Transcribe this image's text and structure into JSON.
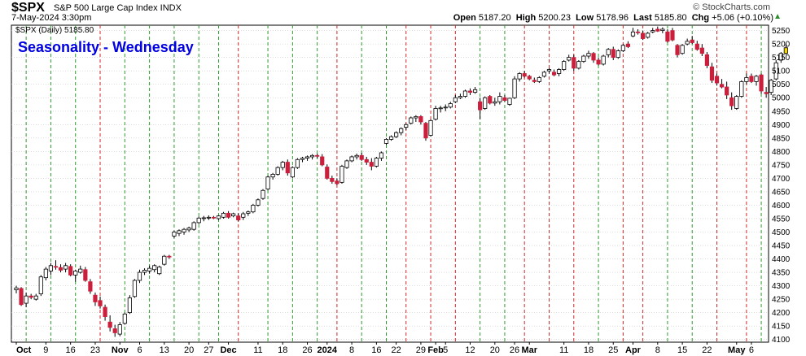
{
  "header": {
    "symbol": "$SPX",
    "description": "S&P 500 Large Cap Index INDX",
    "date": "7-May-2024 3:30pm",
    "copyright": "© StockCharts.com",
    "open_label": "Open",
    "open": "5187.20",
    "high_label": "High",
    "high": "5200.23",
    "low_label": "Low",
    "low": "5178.96",
    "last_label": "Last",
    "last": "5185.80",
    "chg_label": "Chg",
    "chg": "+5.06 (+0.10%)"
  },
  "legend_label": "$SPX (Daily) 5185.80",
  "overlay_title": "Seasonality - Wednesday",
  "colors": {
    "up": "#ffffff",
    "down": "#cc1f3c",
    "vline_green": "#2e9a2e",
    "vline_red": "#d22a2a",
    "grid": "#c8c8c8",
    "title": "#0000e0",
    "last_marker": "#f2d500"
  },
  "chart_data": {
    "type": "candlestick",
    "title": "Seasonality - Wednesday",
    "ylim": [
      4090,
      5270
    ],
    "yticks": [
      4100,
      4150,
      4200,
      4250,
      4300,
      4350,
      4400,
      4450,
      4500,
      4550,
      4600,
      4650,
      4700,
      4750,
      4800,
      4850,
      4900,
      4950,
      5000,
      5050,
      5100,
      5150,
      5200,
      5250
    ],
    "xlabels": [
      {
        "i": 0,
        "label": "Oct",
        "bold": true
      },
      {
        "i": 6,
        "label": "9"
      },
      {
        "i": 11,
        "label": "16"
      },
      {
        "i": 16,
        "label": "23"
      },
      {
        "i": 21,
        "label": "Nov",
        "bold": true
      },
      {
        "i": 25,
        "label": "6"
      },
      {
        "i": 30,
        "label": "13"
      },
      {
        "i": 35,
        "label": "20"
      },
      {
        "i": 39,
        "label": "27"
      },
      {
        "i": 43,
        "label": "Dec",
        "bold": true
      },
      {
        "i": 49,
        "label": "11"
      },
      {
        "i": 54,
        "label": "18"
      },
      {
        "i": 59,
        "label": "26"
      },
      {
        "i": 63,
        "label": "2024",
        "bold": true
      },
      {
        "i": 68,
        "label": "8"
      },
      {
        "i": 73,
        "label": "16"
      },
      {
        "i": 77,
        "label": "22"
      },
      {
        "i": 82,
        "label": "29"
      },
      {
        "i": 85,
        "label": "Feb",
        "bold": true
      },
      {
        "i": 87,
        "label": "5"
      },
      {
        "i": 92,
        "label": "12"
      },
      {
        "i": 97,
        "label": "20"
      },
      {
        "i": 101,
        "label": "26"
      },
      {
        "i": 104,
        "label": "Mar",
        "bold": true
      },
      {
        "i": 111,
        "label": "11"
      },
      {
        "i": 116,
        "label": "18"
      },
      {
        "i": 121,
        "label": "25"
      },
      {
        "i": 125,
        "label": "Apr",
        "bold": true
      },
      {
        "i": 130,
        "label": "8"
      },
      {
        "i": 135,
        "label": "15"
      },
      {
        "i": 140,
        "label": "22"
      },
      {
        "i": 146,
        "label": "May",
        "bold": true
      },
      {
        "i": 149,
        "label": "6"
      }
    ],
    "wednesdays": [
      {
        "i": 2,
        "up": true
      },
      {
        "i": 7,
        "up": true
      },
      {
        "i": 12,
        "up": true
      },
      {
        "i": 17,
        "up": false
      },
      {
        "i": 22,
        "up": true
      },
      {
        "i": 27,
        "up": true
      },
      {
        "i": 32,
        "up": true
      },
      {
        "i": 37,
        "up": true
      },
      {
        "i": 41,
        "up": true
      },
      {
        "i": 45,
        "up": false
      },
      {
        "i": 51,
        "up": true
      },
      {
        "i": 56,
        "up": true
      },
      {
        "i": 61,
        "up": true
      },
      {
        "i": 65,
        "up": false
      },
      {
        "i": 70,
        "up": true
      },
      {
        "i": 75,
        "up": true
      },
      {
        "i": 79,
        "up": false
      },
      {
        "i": 84,
        "up": false
      },
      {
        "i": 89,
        "up": false
      },
      {
        "i": 94,
        "up": true
      },
      {
        "i": 99,
        "up": true
      },
      {
        "i": 103,
        "up": false
      },
      {
        "i": 108,
        "up": false
      },
      {
        "i": 113,
        "up": false
      },
      {
        "i": 118,
        "up": true
      },
      {
        "i": 123,
        "up": false
      },
      {
        "i": 127,
        "up": false
      },
      {
        "i": 132,
        "up": true
      },
      {
        "i": 137,
        "up": true
      },
      {
        "i": 142,
        "up": false
      },
      {
        "i": 148,
        "up": false
      },
      {
        "i": 151,
        "up": true
      }
    ],
    "candles": [
      [
        4285,
        4300,
        4272,
        4292
      ],
      [
        4290,
        4295,
        4225,
        4230
      ],
      [
        4235,
        4275,
        4220,
        4262
      ],
      [
        4262,
        4270,
        4250,
        4257
      ],
      [
        4250,
        4270,
        4245,
        4262
      ],
      [
        4270,
        4340,
        4262,
        4333
      ],
      [
        4330,
        4370,
        4320,
        4362
      ],
      [
        4355,
        4385,
        4340,
        4375
      ],
      [
        4372,
        4395,
        4360,
        4370
      ],
      [
        4368,
        4380,
        4350,
        4358
      ],
      [
        4362,
        4385,
        4350,
        4375
      ],
      [
        4372,
        4380,
        4335,
        4340
      ],
      [
        4340,
        4360,
        4315,
        4355
      ],
      [
        4350,
        4375,
        4345,
        4362
      ],
      [
        4360,
        4370,
        4315,
        4320
      ],
      [
        4315,
        4325,
        4270,
        4280
      ],
      [
        4265,
        4275,
        4225,
        4240
      ],
      [
        4245,
        4260,
        4215,
        4225
      ],
      [
        4220,
        4230,
        4170,
        4185
      ],
      [
        4165,
        4190,
        4130,
        4145
      ],
      [
        4140,
        4155,
        4110,
        4125
      ],
      [
        4120,
        4165,
        4112,
        4155
      ],
      [
        4160,
        4200,
        4155,
        4195
      ],
      [
        4200,
        4265,
        4195,
        4255
      ],
      [
        4260,
        4325,
        4255,
        4320
      ],
      [
        4320,
        4360,
        4310,
        4350
      ],
      [
        4350,
        4365,
        4340,
        4358
      ],
      [
        4355,
        4375,
        4345,
        4365
      ],
      [
        4360,
        4380,
        4350,
        4375
      ],
      [
        4345,
        4375,
        4340,
        4370
      ],
      [
        4380,
        4415,
        4375,
        4410
      ],
      [
        4410,
        4415,
        4400,
        4408
      ],
      [
        4485,
        4505,
        4478,
        4500
      ],
      [
        4495,
        4510,
        4485,
        4505
      ],
      [
        4500,
        4515,
        4490,
        4510
      ],
      [
        4508,
        4520,
        4500,
        4515
      ],
      [
        4510,
        4540,
        4505,
        4535
      ],
      [
        4535,
        4558,
        4530,
        4552
      ],
      [
        4550,
        4560,
        4540,
        4553
      ],
      [
        4552,
        4562,
        4545,
        4555
      ],
      [
        4555,
        4560,
        4548,
        4553
      ],
      [
        4550,
        4562,
        4545,
        4560
      ],
      [
        4555,
        4575,
        4550,
        4570
      ],
      [
        4570,
        4578,
        4550,
        4555
      ],
      [
        4560,
        4572,
        4555,
        4568
      ],
      [
        4560,
        4570,
        4540,
        4545
      ],
      [
        4555,
        4575,
        4545,
        4568
      ],
      [
        4570,
        4580,
        4560,
        4575
      ],
      [
        4575,
        4605,
        4570,
        4600
      ],
      [
        4600,
        4625,
        4595,
        4620
      ],
      [
        4625,
        4660,
        4620,
        4655
      ],
      [
        4660,
        4710,
        4655,
        4705
      ],
      [
        4705,
        4720,
        4695,
        4715
      ],
      [
        4715,
        4745,
        4710,
        4740
      ],
      [
        4740,
        4765,
        4730,
        4760
      ],
      [
        4760,
        4770,
        4710,
        4720
      ],
      [
        4705,
        4745,
        4700,
        4740
      ],
      [
        4740,
        4775,
        4735,
        4770
      ],
      [
        4770,
        4780,
        4760,
        4775
      ],
      [
        4775,
        4785,
        4765,
        4780
      ],
      [
        4780,
        4790,
        4770,
        4785
      ],
      [
        4785,
        4792,
        4775,
        4783
      ],
      [
        4780,
        4790,
        4745,
        4750
      ],
      [
        4742,
        4752,
        4695,
        4700
      ],
      [
        4700,
        4710,
        4680,
        4688
      ],
      [
        4690,
        4700,
        4675,
        4680
      ],
      [
        4685,
        4750,
        4680,
        4745
      ],
      [
        4740,
        4770,
        4735,
        4765
      ],
      [
        4765,
        4785,
        4760,
        4780
      ],
      [
        4780,
        4792,
        4770,
        4785
      ],
      [
        4785,
        4795,
        4765,
        4770
      ],
      [
        4770,
        4780,
        4750,
        4760
      ],
      [
        4760,
        4775,
        4730,
        4745
      ],
      [
        4745,
        4780,
        4740,
        4775
      ],
      [
        4775,
        4800,
        4765,
        4795
      ],
      [
        4830,
        4850,
        4825,
        4845
      ],
      [
        4845,
        4860,
        4840,
        4855
      ],
      [
        4855,
        4875,
        4850,
        4870
      ],
      [
        4870,
        4890,
        4860,
        4885
      ],
      [
        4890,
        4905,
        4880,
        4900
      ],
      [
        4905,
        4930,
        4900,
        4925
      ],
      [
        4925,
        4935,
        4910,
        4930
      ],
      [
        4930,
        4935,
        4900,
        4910
      ],
      [
        4905,
        4910,
        4840,
        4850
      ],
      [
        4860,
        4920,
        4855,
        4915
      ],
      [
        4920,
        4970,
        4915,
        4960
      ],
      [
        4960,
        4970,
        4945,
        4962
      ],
      [
        4965,
        4975,
        4950,
        4965
      ],
      [
        4965,
        4985,
        4960,
        4978
      ],
      [
        4985,
        5010,
        4980,
        5000
      ],
      [
        5000,
        5015,
        4995,
        5005
      ],
      [
        5005,
        5030,
        5000,
        5025
      ],
      [
        5025,
        5035,
        5010,
        5020
      ],
      [
        5020,
        5040,
        5015,
        5030
      ],
      [
        4985,
        5000,
        4920,
        4955
      ],
      [
        4960,
        5005,
        4955,
        5000
      ],
      [
        5005,
        5010,
        4975,
        4980
      ],
      [
        4980,
        5000,
        4970,
        4985
      ],
      [
        4985,
        5020,
        4975,
        5005
      ],
      [
        5000,
        5010,
        4985,
        4990
      ],
      [
        4975,
        5000,
        4970,
        4998
      ],
      [
        5000,
        5080,
        4995,
        5070
      ],
      [
        5070,
        5095,
        5060,
        5090
      ],
      [
        5090,
        5100,
        5075,
        5080
      ],
      [
        5080,
        5085,
        5065,
        5070
      ],
      [
        5065,
        5075,
        5055,
        5060
      ],
      [
        5060,
        5080,
        5055,
        5075
      ],
      [
        5080,
        5100,
        5075,
        5095
      ],
      [
        5100,
        5110,
        5090,
        5105
      ],
      [
        5095,
        5105,
        5080,
        5085
      ],
      [
        5090,
        5110,
        5080,
        5105
      ],
      [
        5105,
        5140,
        5100,
        5135
      ],
      [
        5140,
        5160,
        5135,
        5150
      ],
      [
        5150,
        5160,
        5100,
        5110
      ],
      [
        5110,
        5140,
        5105,
        5135
      ],
      [
        5135,
        5160,
        5130,
        5155
      ],
      [
        5155,
        5175,
        5145,
        5165
      ],
      [
        5165,
        5170,
        5130,
        5140
      ],
      [
        5140,
        5150,
        5120,
        5125
      ],
      [
        5125,
        5160,
        5120,
        5155
      ],
      [
        5160,
        5185,
        5150,
        5180
      ],
      [
        5180,
        5190,
        5140,
        5150
      ],
      [
        5150,
        5180,
        5145,
        5175
      ],
      [
        5175,
        5200,
        5170,
        5195
      ],
      [
        5200,
        5210,
        5185,
        5190
      ],
      [
        5230,
        5260,
        5225,
        5245
      ],
      [
        5245,
        5255,
        5235,
        5242
      ],
      [
        5240,
        5250,
        5215,
        5220
      ],
      [
        5225,
        5245,
        5220,
        5240
      ],
      [
        5245,
        5260,
        5240,
        5250
      ],
      [
        5255,
        5265,
        5245,
        5248
      ],
      [
        5250,
        5262,
        5240,
        5255
      ],
      [
        5245,
        5255,
        5205,
        5210
      ],
      [
        5250,
        5260,
        5210,
        5215
      ],
      [
        5195,
        5200,
        5150,
        5160
      ],
      [
        5165,
        5200,
        5160,
        5195
      ],
      [
        5200,
        5220,
        5195,
        5210
      ],
      [
        5215,
        5230,
        5200,
        5205
      ],
      [
        5200,
        5212,
        5175,
        5180
      ],
      [
        5185,
        5200,
        5155,
        5165
      ],
      [
        5160,
        5170,
        5110,
        5120
      ],
      [
        5115,
        5130,
        5055,
        5065
      ],
      [
        5080,
        5090,
        5045,
        5055
      ],
      [
        5050,
        5070,
        5035,
        5040
      ],
      [
        5040,
        5060,
        4995,
        5010
      ],
      [
        5000,
        5020,
        4955,
        4970
      ],
      [
        4960,
        5010,
        4955,
        5005
      ],
      [
        5005,
        5065,
        5000,
        5060
      ],
      [
        5060,
        5090,
        5050,
        5075
      ],
      [
        5080,
        5090,
        5055,
        5060
      ],
      [
        5060,
        5085,
        5045,
        5080
      ],
      [
        5085,
        5090,
        5015,
        5025
      ],
      [
        5020,
        5040,
        5000,
        5015
      ],
      [
        5020,
        5070,
        5010,
        5065
      ],
      [
        5070,
        5140,
        5065,
        5130
      ],
      [
        5140,
        5170,
        5130,
        5165
      ],
      [
        5165,
        5200,
        5160,
        5186
      ]
    ]
  }
}
